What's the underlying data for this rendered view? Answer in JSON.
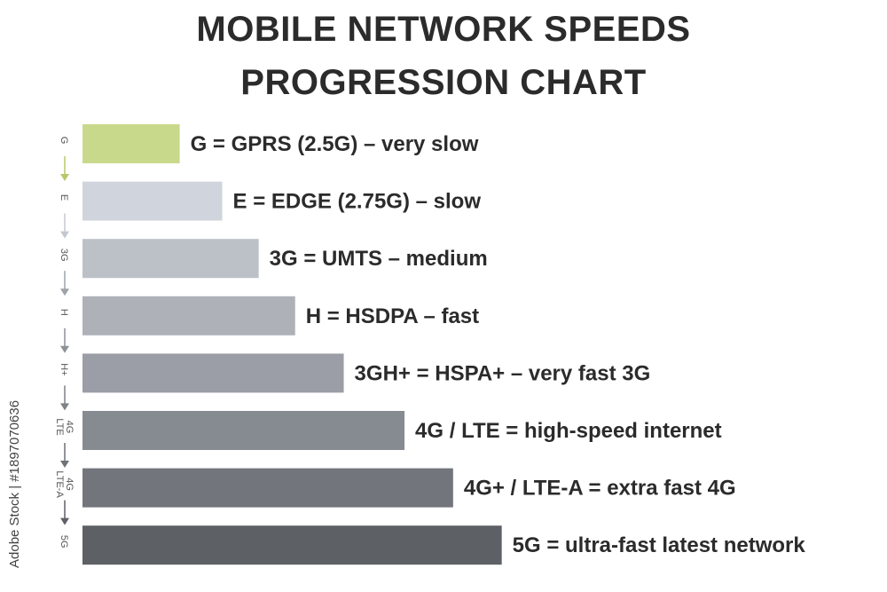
{
  "title_lines": [
    "MOBILE NETWORK SPEEDS",
    "PROGRESSION CHART"
  ],
  "side_text": "Adobe Stock | #1897070636",
  "chart_data": {
    "type": "bar",
    "orientation": "horizontal",
    "title": "MOBILE NETWORK SPEEDS PROGRESSION CHART",
    "categories": [
      "G",
      "E",
      "3G",
      "H",
      "H+",
      "4G LTE",
      "4G LTE-A",
      "5G"
    ],
    "values": [
      1.6,
      2.3,
      2.9,
      3.5,
      4.3,
      5.3,
      6.1,
      6.9
    ],
    "value_scale": "relative (no numeric axis shown)",
    "xlim": [
      0,
      7
    ],
    "labels": [
      "G = GPRS (2.5G) – very slow",
      "E = EDGE (2.75G) – slow",
      "3G = UMTS – medium",
      "H = HSDPA – fast",
      "3GH+ = HSPA+ – very fast 3G",
      "4G / LTE = high-speed internet",
      "4G+ / LTE-A = extra fast 4G",
      "5G = ultra-fast latest network"
    ],
    "abbreviations": [
      [
        "G"
      ],
      [
        "E"
      ],
      [
        "3G"
      ],
      [
        "H"
      ],
      [
        "H+"
      ],
      [
        "4G",
        "LTE"
      ],
      [
        "4G",
        "LTE-A"
      ],
      [
        "5G"
      ]
    ],
    "colors": [
      "#c9d98c",
      "#d0d4dc",
      "#bcc0c7",
      "#aeb1b8",
      "#9b9ea6",
      "#868a91",
      "#72767c",
      "#5d6065"
    ],
    "arrow_colors": [
      "#b5c96a",
      "#c4c8cf",
      "#9ea2a9",
      "#8e9198",
      "#7e8188",
      "#6e7178",
      "#5e6167",
      "#4e5156"
    ],
    "grid": false,
    "legend": "none"
  }
}
